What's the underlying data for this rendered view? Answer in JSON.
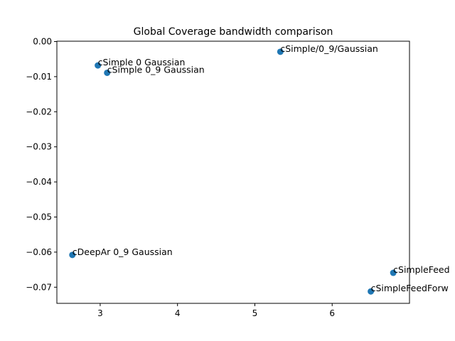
{
  "chart_data": {
    "type": "scatter",
    "title": "Global Coverage bandwidth comparison",
    "xlabel": "",
    "ylabel": "",
    "xlim": [
      2.44,
      7.0
    ],
    "ylim": [
      -0.0746,
      0.0001
    ],
    "xticks": [
      3,
      4,
      5,
      6
    ],
    "xtick_labels": [
      "3",
      "4",
      "5",
      "6"
    ],
    "yticks": [
      0.0,
      -0.01,
      -0.02,
      -0.03,
      -0.04,
      -0.05,
      -0.06,
      -0.07
    ],
    "ytick_labels": [
      "0.00",
      "−0.01",
      "−0.02",
      "−0.03",
      "−0.04",
      "−0.05",
      "−0.06",
      "−0.07"
    ],
    "grid": false,
    "marker_color": "#1f77b4",
    "points": [
      {
        "x": 2.97,
        "y": -0.0068,
        "label": "cSimple 0 Gaussian"
      },
      {
        "x": 3.09,
        "y": -0.0089,
        "label": "cSimple 0_9 Gaussian"
      },
      {
        "x": 5.33,
        "y": -0.0029,
        "label": "cSimple/0_9/Gaussian"
      },
      {
        "x": 2.64,
        "y": -0.0608,
        "label": "cDeepAr 0_9 Gaussian"
      },
      {
        "x": 6.79,
        "y": -0.0659,
        "label": "cSimpleFeed"
      },
      {
        "x": 6.5,
        "y": -0.0712,
        "label": "cSimpleFeedForw"
      }
    ]
  }
}
